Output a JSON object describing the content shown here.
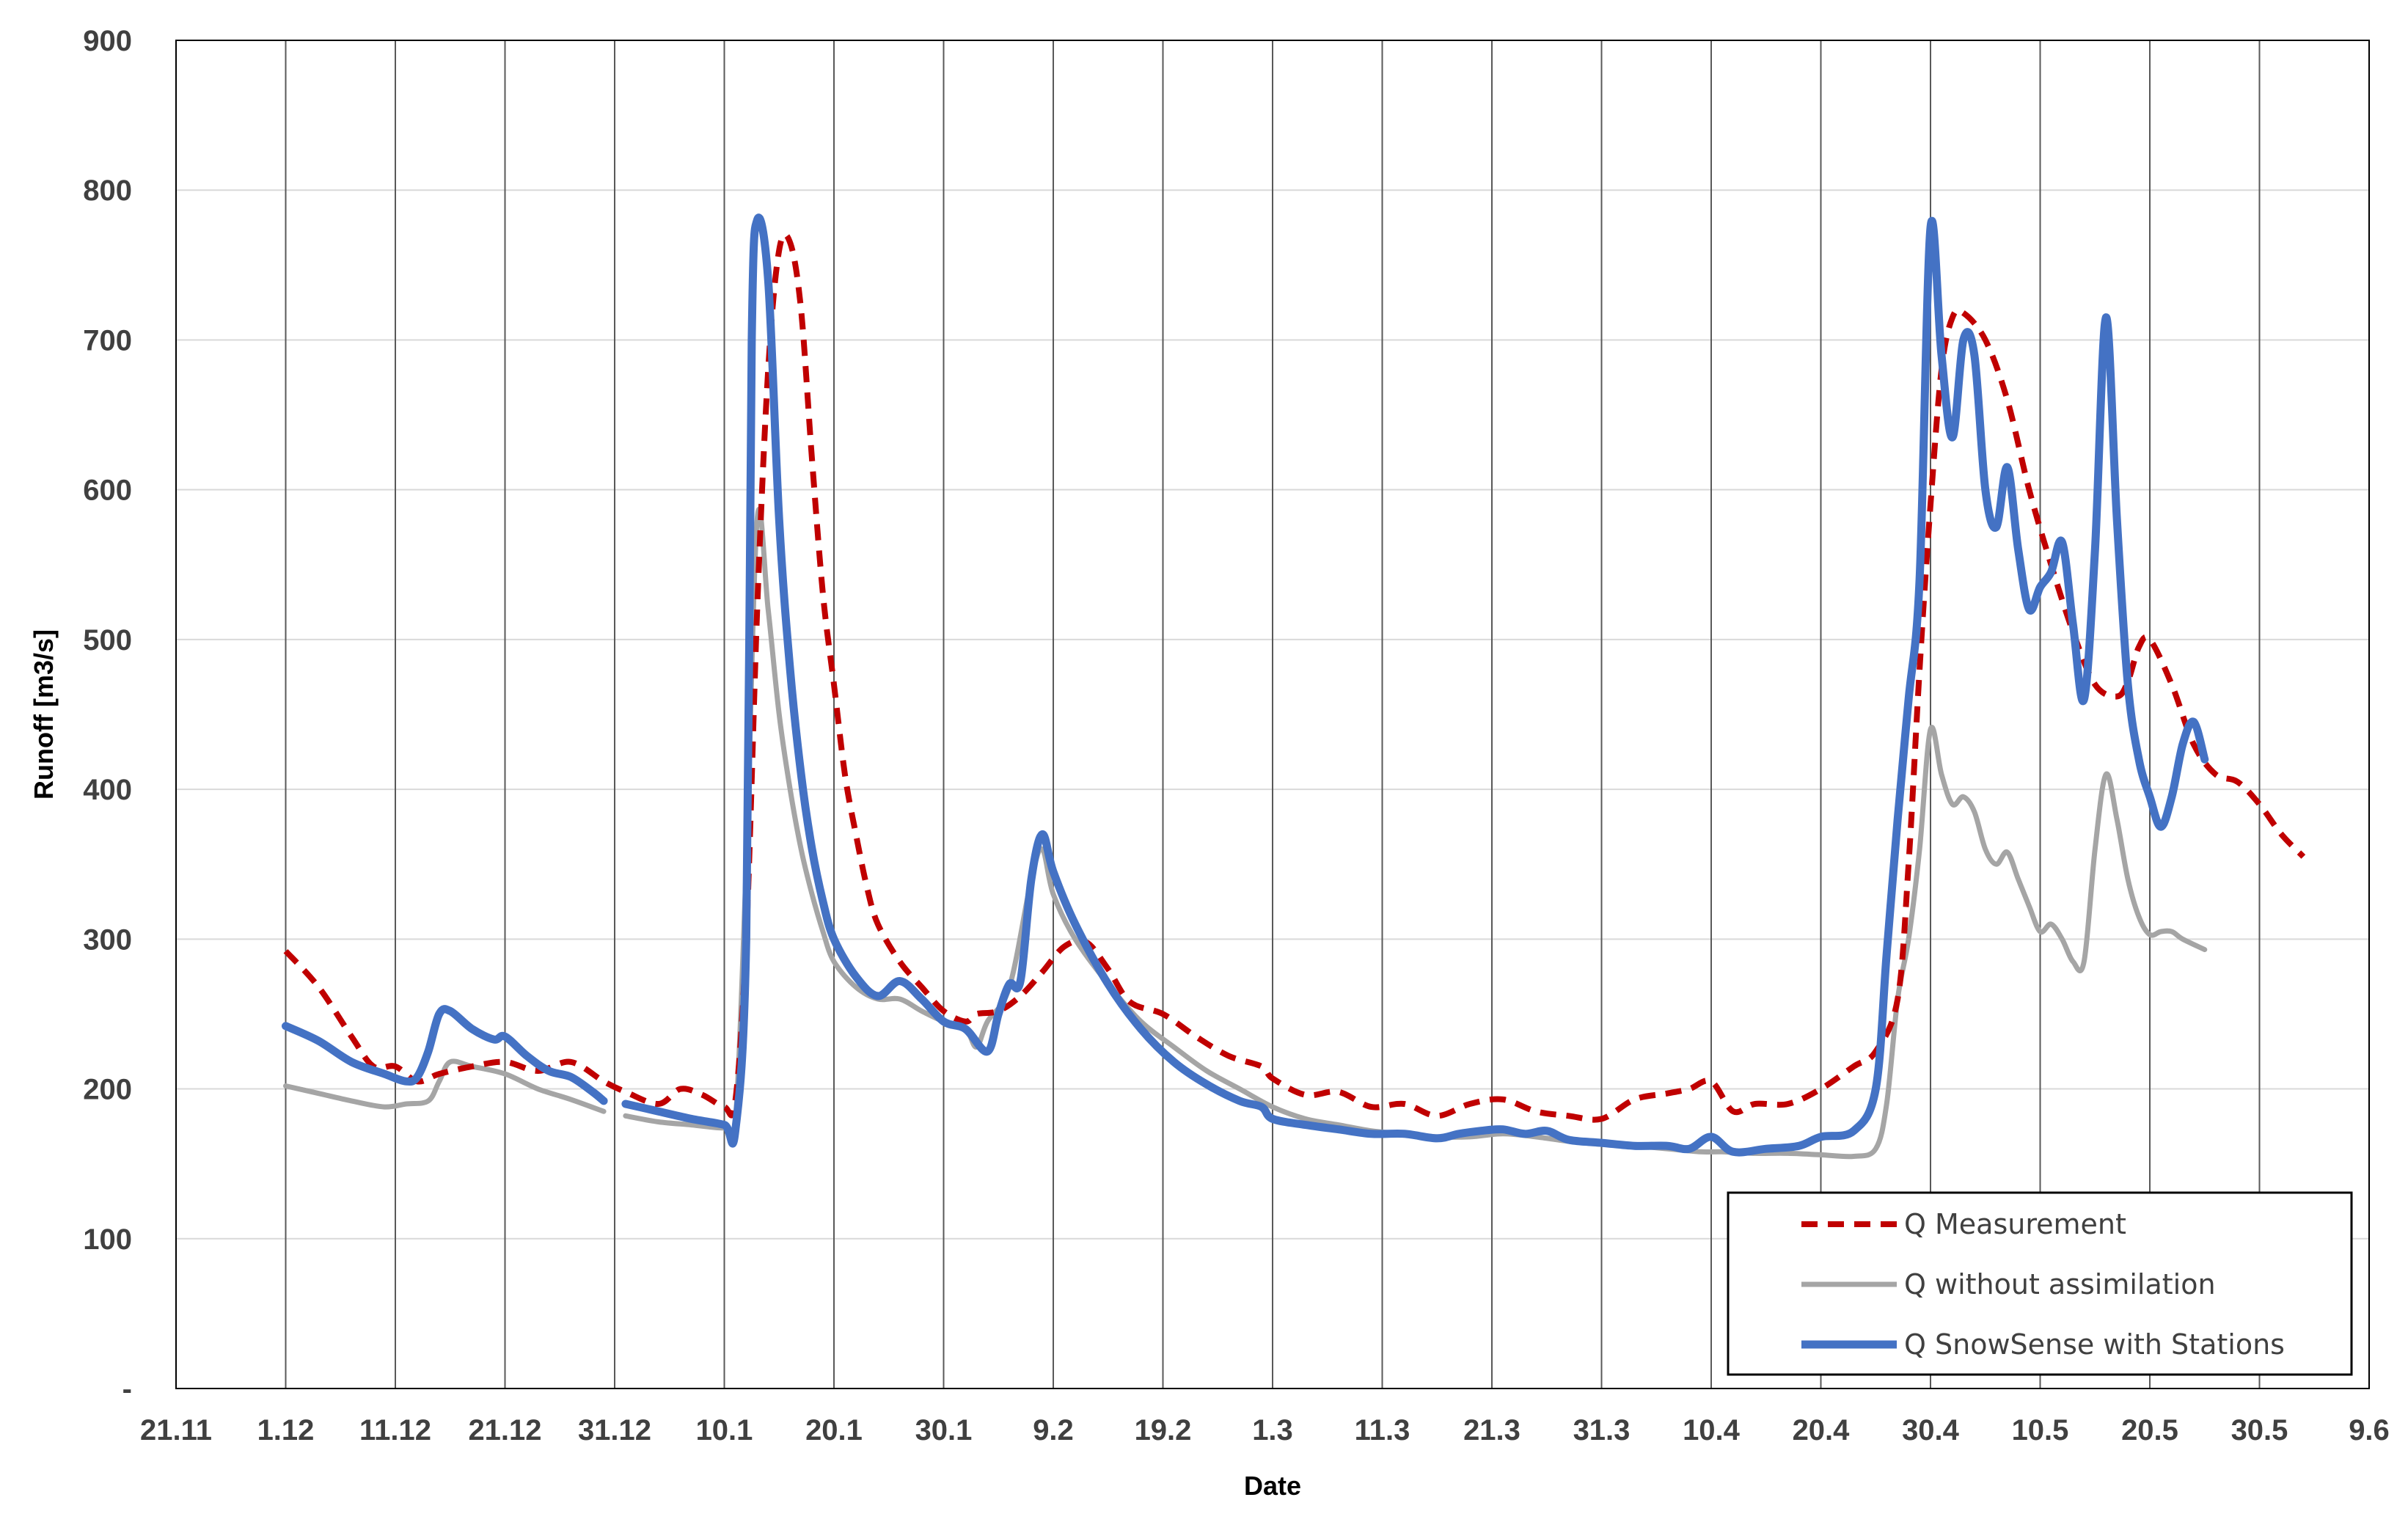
{
  "chart_data": {
    "type": "line",
    "title": "",
    "xlabel": "Date",
    "ylabel": "Runoff [m3/s]",
    "ylim": [
      0,
      900
    ],
    "y_ticks": [
      {
        "value": 0,
        "label": "-"
      },
      {
        "value": 100,
        "label": "100"
      },
      {
        "value": 200,
        "label": "200"
      },
      {
        "value": 300,
        "label": "300"
      },
      {
        "value": 400,
        "label": "400"
      },
      {
        "value": 500,
        "label": "500"
      },
      {
        "value": 600,
        "label": "600"
      },
      {
        "value": 700,
        "label": "700"
      },
      {
        "value": 800,
        "label": "800"
      },
      {
        "value": 900,
        "label": "900"
      }
    ],
    "x_ticks": [
      "21.11",
      "1.12",
      "11.12",
      "21.12",
      "31.12",
      "10.1",
      "20.1",
      "30.1",
      "9.2",
      "19.2",
      "1.3",
      "11.3",
      "21.3",
      "31.3",
      "10.4",
      "20.4",
      "30.4",
      "10.5",
      "20.5",
      "30.5",
      "9.6"
    ],
    "grid": "vertical and horizontal",
    "legend_position": "bottom-right",
    "series": [
      {
        "name": "Q Measurement",
        "color": "#c00000",
        "style": "dashed",
        "points": [
          [
            "1.12",
            292
          ],
          [
            "4.12",
            268
          ],
          [
            "7.12",
            235
          ],
          [
            "9.12",
            215
          ],
          [
            "11.12",
            215
          ],
          [
            "13.12",
            205
          ],
          [
            "15.12",
            210
          ],
          [
            "18.12",
            215
          ],
          [
            "21.12",
            218
          ],
          [
            "24.12",
            212
          ],
          [
            "27.12",
            218
          ],
          [
            "30.12",
            205
          ],
          [
            "1.1",
            198
          ],
          [
            "4.1",
            190
          ],
          [
            "6.1",
            200
          ],
          [
            "8.1",
            196
          ],
          [
            "10.1",
            188
          ],
          [
            "11.1",
            192
          ],
          [
            "12.1",
            300
          ],
          [
            "13.1",
            520
          ],
          [
            "14.1",
            680
          ],
          [
            "15.1",
            760
          ],
          [
            "16.1",
            765
          ],
          [
            "17.1",
            720
          ],
          [
            "18.1",
            620
          ],
          [
            "19.1",
            530
          ],
          [
            "20.1",
            470
          ],
          [
            "21.1",
            410
          ],
          [
            "22.1",
            370
          ],
          [
            "23.1",
            335
          ],
          [
            "24.1",
            310
          ],
          [
            "26.1",
            285
          ],
          [
            "28.1",
            268
          ],
          [
            "30.1",
            252
          ],
          [
            "1.2",
            245
          ],
          [
            "2.2",
            250
          ],
          [
            "4.2",
            252
          ],
          [
            "6.2",
            262
          ],
          [
            "8.2",
            278
          ],
          [
            "10.2",
            295
          ],
          [
            "12.2",
            298
          ],
          [
            "14.2",
            280
          ],
          [
            "16.2",
            258
          ],
          [
            "19.2",
            250
          ],
          [
            "22.2",
            235
          ],
          [
            "25.2",
            222
          ],
          [
            "28.2",
            215
          ],
          [
            "1.3",
            207
          ],
          [
            "4.3",
            196
          ],
          [
            "7.3",
            198
          ],
          [
            "10.3",
            188
          ],
          [
            "13.3",
            190
          ],
          [
            "16.3",
            182
          ],
          [
            "19.3",
            190
          ],
          [
            "22.3",
            193
          ],
          [
            "25.3",
            185
          ],
          [
            "28.3",
            182
          ],
          [
            "31.3",
            180
          ],
          [
            "3.4",
            193
          ],
          [
            "6.4",
            197
          ],
          [
            "8.4",
            200
          ],
          [
            "10.4",
            205
          ],
          [
            "12.4",
            185
          ],
          [
            "14.4",
            190
          ],
          [
            "17.4",
            190
          ],
          [
            "20.4",
            200
          ],
          [
            "23.4",
            215
          ],
          [
            "25.4",
            225
          ],
          [
            "27.4",
            260
          ],
          [
            "28.4",
            350
          ],
          [
            "29.4",
            480
          ],
          [
            "30.4",
            590
          ],
          [
            "1.5",
            680
          ],
          [
            "2.5",
            715
          ],
          [
            "3.5",
            718
          ],
          [
            "5.5",
            700
          ],
          [
            "7.5",
            660
          ],
          [
            "9.5",
            600
          ],
          [
            "11.5",
            550
          ],
          [
            "13.5",
            505
          ],
          [
            "15.5",
            470
          ],
          [
            "17.5",
            462
          ],
          [
            "18.5",
            472
          ],
          [
            "19.5",
            495
          ],
          [
            "20.5",
            500
          ],
          [
            "22.5",
            470
          ],
          [
            "24.5",
            430
          ],
          [
            "26.5",
            410
          ],
          [
            "28.5",
            405
          ],
          [
            "30.5",
            390
          ],
          [
            "1.6",
            370
          ],
          [
            "3.6",
            355
          ]
        ]
      },
      {
        "name": "Q without assimilation",
        "color": "#a5a5a5",
        "style": "solid",
        "points": [
          [
            "1.12",
            202
          ],
          [
            "4.12",
            197
          ],
          [
            "7.12",
            192
          ],
          [
            "10.12",
            188
          ],
          [
            "12.12",
            190
          ],
          [
            "14.12",
            192
          ],
          [
            "15.12",
            205
          ],
          [
            "16.12",
            218
          ],
          [
            "18.12",
            215
          ],
          [
            "21.12",
            210
          ],
          [
            "24.12",
            200
          ],
          [
            "27.12",
            193
          ],
          [
            "30.12",
            185
          ],
          [
            null,
            null
          ],
          [
            "1.1",
            182
          ],
          [
            "4.1",
            178
          ],
          [
            "7.1",
            176
          ],
          [
            "10.1",
            174
          ],
          [
            "11.1",
            178
          ],
          [
            "12.1",
            350
          ],
          [
            "13.1",
            580
          ],
          [
            "14.1",
            520
          ],
          [
            "15.1",
            450
          ],
          [
            "16.1",
            400
          ],
          [
            "17.1",
            360
          ],
          [
            "18.1",
            330
          ],
          [
            "19.1",
            305
          ],
          [
            "20.1",
            285
          ],
          [
            "22.1",
            268
          ],
          [
            "24.1",
            260
          ],
          [
            "26.1",
            260
          ],
          [
            "28.1",
            252
          ],
          [
            "30.1",
            245
          ],
          [
            "1.2",
            240
          ],
          [
            "2.2",
            228
          ],
          [
            "3.2",
            245
          ],
          [
            "5.2",
            268
          ],
          [
            "7.2",
            340
          ],
          [
            "8.2",
            360
          ],
          [
            "9.2",
            330
          ],
          [
            "11.2",
            300
          ],
          [
            "14.2",
            270
          ],
          [
            "17.2",
            245
          ],
          [
            "20.2",
            228
          ],
          [
            "23.2",
            212
          ],
          [
            "26.2",
            200
          ],
          [
            "1.3",
            188
          ],
          [
            "4.3",
            180
          ],
          [
            "7.3",
            176
          ],
          [
            "10.3",
            172
          ],
          [
            "13.3",
            170
          ],
          [
            "16.3",
            168
          ],
          [
            "19.3",
            168
          ],
          [
            "22.3",
            170
          ],
          [
            "25.3",
            168
          ],
          [
            "28.3",
            165
          ],
          [
            "31.3",
            163
          ],
          [
            "3.4",
            162
          ],
          [
            "6.4",
            160
          ],
          [
            "9.4",
            158
          ],
          [
            "11.4",
            158
          ],
          [
            "14.4",
            157
          ],
          [
            "17.4",
            157
          ],
          [
            "20.4",
            156
          ],
          [
            "23.4",
            155
          ],
          [
            "25.4",
            160
          ],
          [
            "26.4",
            190
          ],
          [
            "27.4",
            260
          ],
          [
            "28.4",
            300
          ],
          [
            "29.4",
            360
          ],
          [
            "30.4",
            440
          ],
          [
            "1.5",
            410
          ],
          [
            "2.5",
            390
          ],
          [
            "3.5",
            395
          ],
          [
            "4.5",
            385
          ],
          [
            "5.5",
            360
          ],
          [
            "6.5",
            350
          ],
          [
            "7.5",
            358
          ],
          [
            "8.5",
            340
          ],
          [
            "9.5",
            322
          ],
          [
            "10.5",
            305
          ],
          [
            "11.5",
            310
          ],
          [
            "12.5",
            300
          ],
          [
            "13.5",
            285
          ],
          [
            "14.5",
            285
          ],
          [
            "15.5",
            360
          ],
          [
            "16.5",
            410
          ],
          [
            "17.5",
            380
          ],
          [
            "18.5",
            340
          ],
          [
            "19.5",
            315
          ],
          [
            "20.5",
            303
          ],
          [
            "21.5",
            305
          ],
          [
            "22.5",
            305
          ],
          [
            "23.5",
            300
          ],
          [
            "25.5",
            293
          ]
        ]
      },
      {
        "name": "Q SnowSense with Stations",
        "color": "#4472c4",
        "style": "solid",
        "points": [
          [
            "1.12",
            242
          ],
          [
            "4.12",
            232
          ],
          [
            "7.12",
            218
          ],
          [
            "10.12",
            210
          ],
          [
            "12.12",
            205
          ],
          [
            "13.12",
            208
          ],
          [
            "14.12",
            225
          ],
          [
            "15.12",
            250
          ],
          [
            "16.12",
            252
          ],
          [
            "18.12",
            240
          ],
          [
            "20.12",
            233
          ],
          [
            "21.12",
            235
          ],
          [
            "23.12",
            222
          ],
          [
            "25.12",
            212
          ],
          [
            "27.12",
            208
          ],
          [
            "29.12",
            198
          ],
          [
            "30.12",
            192
          ],
          [
            null,
            null
          ],
          [
            "1.1",
            190
          ],
          [
            "4.1",
            185
          ],
          [
            "7.1",
            180
          ],
          [
            "10.1",
            176
          ],
          [
            "11.1",
            172
          ],
          [
            "12.1",
            300
          ],
          [
            "12.5.1",
            700
          ],
          [
            "13.1",
            780
          ],
          [
            "14.1",
            740
          ],
          [
            "15.1",
            580
          ],
          [
            "16.1",
            480
          ],
          [
            "17.1",
            410
          ],
          [
            "18.1",
            360
          ],
          [
            "19.1",
            325
          ],
          [
            "20.1",
            300
          ],
          [
            "22.1",
            275
          ],
          [
            "24.1",
            262
          ],
          [
            "26.1",
            272
          ],
          [
            "28.1",
            260
          ],
          [
            "30.1",
            245
          ],
          [
            "1.2",
            240
          ],
          [
            "3.2",
            225
          ],
          [
            "4.2",
            250
          ],
          [
            "5.2",
            270
          ],
          [
            "6.2",
            272
          ],
          [
            "7.2",
            340
          ],
          [
            "8.2",
            370
          ],
          [
            "9.2",
            345
          ],
          [
            "11.2",
            310
          ],
          [
            "14.2",
            270
          ],
          [
            "17.2",
            240
          ],
          [
            "20.2",
            218
          ],
          [
            "23.2",
            203
          ],
          [
            "26.2",
            192
          ],
          [
            "28.2",
            188
          ],
          [
            "1.3",
            180
          ],
          [
            "4.3",
            176
          ],
          [
            "7.3",
            173
          ],
          [
            "10.3",
            170
          ],
          [
            "13.3",
            170
          ],
          [
            "16.3",
            167
          ],
          [
            "18.3",
            170
          ],
          [
            "20.3",
            172
          ],
          [
            "22.3",
            173
          ],
          [
            "24.3",
            170
          ],
          [
            "26.3",
            172
          ],
          [
            "28.3",
            166
          ],
          [
            "31.3",
            164
          ],
          [
            "3.4",
            162
          ],
          [
            "6.4",
            162
          ],
          [
            "8.4",
            160
          ],
          [
            "10.4",
            168
          ],
          [
            "12.4",
            158
          ],
          [
            "15.4",
            160
          ],
          [
            "18.4",
            162
          ],
          [
            "20.4",
            168
          ],
          [
            "23.4",
            172
          ],
          [
            "25.4",
            200
          ],
          [
            "26.4",
            290
          ],
          [
            "27.4",
            380
          ],
          [
            "28.4",
            460
          ],
          [
            "29.4",
            540
          ],
          [
            "30.4",
            775
          ],
          [
            "1.5",
            690
          ],
          [
            "2.5",
            635
          ],
          [
            "3.5",
            700
          ],
          [
            "4.5",
            690
          ],
          [
            "5.5",
            600
          ],
          [
            "6.5",
            575
          ],
          [
            "7.5",
            615
          ],
          [
            "8.5",
            560
          ],
          [
            "9.5",
            520
          ],
          [
            "10.5",
            535
          ],
          [
            "11.5",
            545
          ],
          [
            "12.5",
            565
          ],
          [
            "13.5",
            510
          ],
          [
            "14.5",
            460
          ],
          [
            "15.5",
            560
          ],
          [
            "16.5",
            715
          ],
          [
            "17.5",
            580
          ],
          [
            "18.5",
            470
          ],
          [
            "19.5",
            420
          ],
          [
            "20.5",
            395
          ],
          [
            "21.5",
            375
          ],
          [
            "22.5",
            395
          ],
          [
            "23.5",
            430
          ],
          [
            "24.5",
            445
          ],
          [
            "25.5",
            420
          ]
        ]
      }
    ]
  }
}
